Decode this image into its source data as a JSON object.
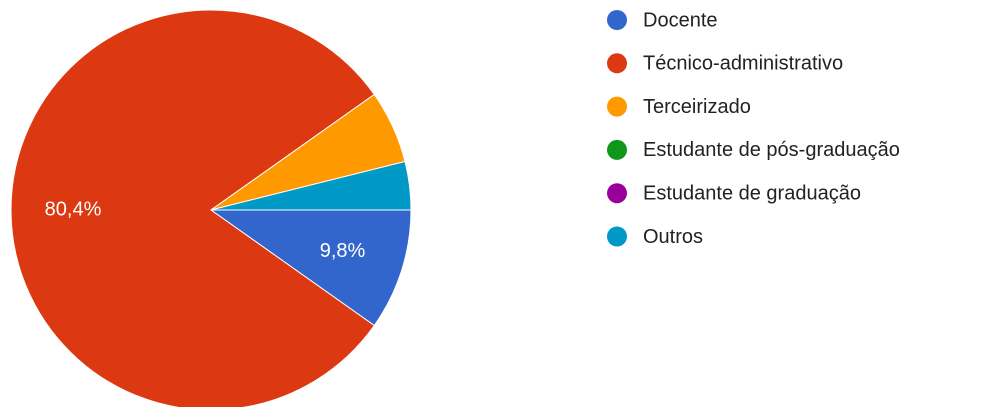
{
  "chart_data": {
    "type": "pie",
    "categories": [
      "Docente",
      "Técnico-administrativo",
      "Terceirizado",
      "Estudante de pós-graduação",
      "Estudante de graduação",
      "Outros"
    ],
    "values": [
      9.8,
      80.4,
      5.9,
      0,
      0,
      3.9
    ],
    "value_labels": [
      "9,8%",
      "80,4%",
      null,
      null,
      null,
      null
    ],
    "colors": [
      "#3366cc",
      "#dc3912",
      "#ff9900",
      "#109618",
      "#990099",
      "#0099c6"
    ],
    "legend": "right"
  }
}
